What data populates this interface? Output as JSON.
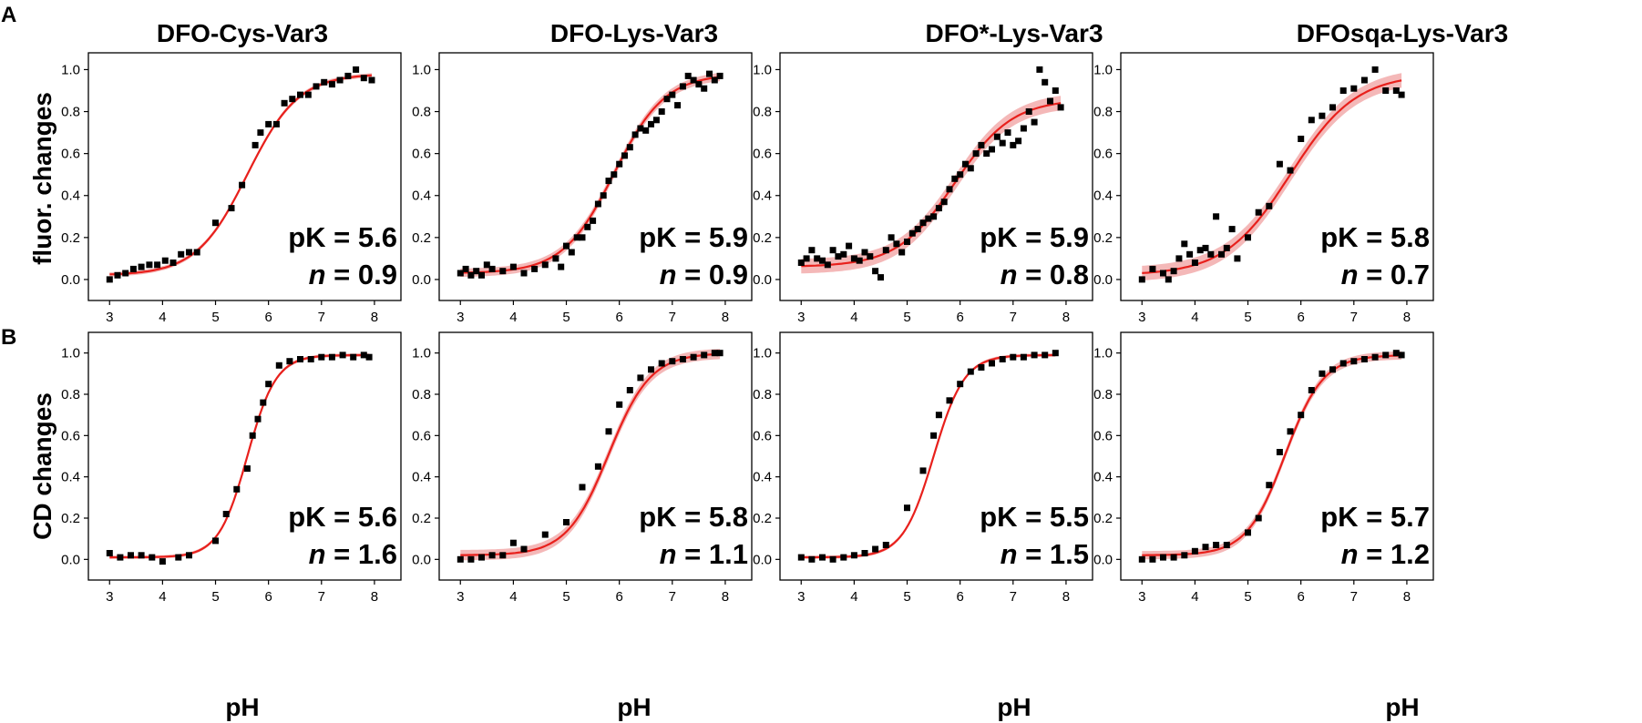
{
  "colors": {
    "fit": "#e8201c",
    "band": "#f0a0a0",
    "points": "#000000"
  },
  "panel_letters": [
    "A",
    "B"
  ],
  "row_ylabels": [
    "fluor. changes",
    "CD changes"
  ],
  "xlabel": "pH",
  "titles": [
    "DFO-Cys-Var3",
    "DFO-Lys-Var3",
    "DFO*-Lys-Var3",
    "DFOsqa-Lys-Var3"
  ],
  "chart_data": [
    {
      "type": "scatter",
      "title": "DFO-Cys-Var3",
      "ylabel": "fluor. changes",
      "xlabel": "",
      "xlim": [
        2.6,
        8.5
      ],
      "ylim": [
        -0.1,
        1.08
      ],
      "xticks": [
        3,
        4,
        5,
        6,
        7,
        8
      ],
      "yticks": [
        0.0,
        0.2,
        0.4,
        0.6,
        0.8,
        1.0
      ],
      "fit": {
        "pK": 5.6,
        "n": 0.9,
        "base": 0.02,
        "top": 0.98,
        "band": 0.01
      },
      "pK_text": "pK = 5.6",
      "n_text": "= 0.9",
      "n_symbol": "n",
      "x": [
        3.0,
        3.15,
        3.3,
        3.45,
        3.6,
        3.75,
        3.9,
        4.05,
        4.2,
        4.35,
        4.5,
        4.65,
        5.0,
        5.3,
        5.5,
        5.75,
        5.85,
        6.0,
        6.15,
        6.3,
        6.45,
        6.6,
        6.75,
        6.9,
        7.05,
        7.2,
        7.35,
        7.5,
        7.65,
        7.8,
        7.95
      ],
      "y": [
        0.0,
        0.02,
        0.03,
        0.05,
        0.06,
        0.07,
        0.07,
        0.09,
        0.08,
        0.12,
        0.13,
        0.13,
        0.27,
        0.34,
        0.45,
        0.64,
        0.7,
        0.74,
        0.74,
        0.84,
        0.86,
        0.88,
        0.88,
        0.92,
        0.94,
        0.93,
        0.95,
        0.97,
        1.0,
        0.96,
        0.95
      ]
    },
    {
      "type": "scatter",
      "title": "DFO-Lys-Var3",
      "ylabel": "",
      "xlabel": "",
      "xlim": [
        2.6,
        8.5
      ],
      "ylim": [
        -0.1,
        1.08
      ],
      "xticks": [
        3,
        4,
        5,
        6,
        7,
        8
      ],
      "yticks": [
        0.0,
        0.2,
        0.4,
        0.6,
        0.8,
        1.0
      ],
      "fit": {
        "pK": 5.9,
        "n": 0.9,
        "base": 0.03,
        "top": 0.98,
        "band": 0.02
      },
      "pK_text": "pK = 5.9",
      "n_text": "= 0.9",
      "n_symbol": "n",
      "x": [
        3.0,
        3.1,
        3.2,
        3.3,
        3.4,
        3.5,
        3.6,
        3.8,
        4.0,
        4.2,
        4.4,
        4.6,
        4.8,
        4.9,
        5.0,
        5.1,
        5.2,
        5.3,
        5.4,
        5.5,
        5.6,
        5.7,
        5.8,
        5.9,
        6.0,
        6.1,
        6.2,
        6.3,
        6.4,
        6.5,
        6.6,
        6.7,
        6.8,
        6.9,
        7.0,
        7.1,
        7.2,
        7.3,
        7.4,
        7.5,
        7.6,
        7.7,
        7.8,
        7.9
      ],
      "y": [
        0.03,
        0.05,
        0.02,
        0.04,
        0.02,
        0.07,
        0.05,
        0.04,
        0.06,
        0.03,
        0.05,
        0.07,
        0.1,
        0.06,
        0.16,
        0.13,
        0.2,
        0.2,
        0.25,
        0.28,
        0.36,
        0.4,
        0.47,
        0.5,
        0.55,
        0.59,
        0.63,
        0.69,
        0.72,
        0.71,
        0.74,
        0.76,
        0.8,
        0.86,
        0.88,
        0.83,
        0.92,
        0.97,
        0.95,
        0.93,
        0.91,
        0.98,
        0.95,
        0.97
      ]
    },
    {
      "type": "scatter",
      "title": "DFO*-Lys-Var3",
      "ylabel": "",
      "xlabel": "",
      "xlim": [
        2.6,
        8.5
      ],
      "ylim": [
        -0.1,
        1.08
      ],
      "xticks": [
        3,
        4,
        5,
        6,
        7,
        8
      ],
      "yticks": [
        0.0,
        0.2,
        0.4,
        0.6,
        0.8,
        1.0
      ],
      "fit": {
        "pK": 5.9,
        "n": 0.8,
        "base": 0.06,
        "top": 0.86,
        "band": 0.035
      },
      "pK_text": "pK = 5.9",
      "n_text": "= 0.8",
      "n_symbol": "n",
      "x": [
        3.0,
        3.1,
        3.2,
        3.3,
        3.4,
        3.5,
        3.6,
        3.7,
        3.8,
        3.9,
        4.0,
        4.1,
        4.2,
        4.3,
        4.4,
        4.5,
        4.6,
        4.7,
        4.8,
        4.9,
        5.0,
        5.1,
        5.2,
        5.3,
        5.4,
        5.5,
        5.6,
        5.7,
        5.8,
        5.9,
        6.0,
        6.1,
        6.2,
        6.3,
        6.4,
        6.5,
        6.6,
        6.7,
        6.8,
        6.9,
        7.0,
        7.1,
        7.2,
        7.3,
        7.4,
        7.5,
        7.6,
        7.7,
        7.8,
        7.9
      ],
      "y": [
        0.08,
        0.1,
        0.14,
        0.1,
        0.09,
        0.07,
        0.14,
        0.11,
        0.12,
        0.16,
        0.1,
        0.09,
        0.13,
        0.11,
        0.04,
        0.01,
        0.14,
        0.2,
        0.17,
        0.13,
        0.18,
        0.22,
        0.24,
        0.27,
        0.29,
        0.3,
        0.34,
        0.37,
        0.43,
        0.48,
        0.5,
        0.55,
        0.53,
        0.6,
        0.64,
        0.6,
        0.62,
        0.68,
        0.65,
        0.7,
        0.64,
        0.66,
        0.72,
        0.8,
        0.75,
        1.0,
        0.94,
        0.85,
        0.9,
        0.82
      ]
    },
    {
      "type": "scatter",
      "title": "DFOsqa-Lys-Var3",
      "ylabel": "",
      "xlabel": "",
      "xlim": [
        2.6,
        8.5
      ],
      "ylim": [
        -0.1,
        1.08
      ],
      "xticks": [
        3,
        4,
        5,
        6,
        7,
        8
      ],
      "yticks": [
        0.0,
        0.2,
        0.4,
        0.6,
        0.8,
        1.0
      ],
      "fit": {
        "pK": 5.8,
        "n": 0.7,
        "base": 0.02,
        "top": 0.98,
        "band": 0.035
      },
      "pK_text": "pK = 5.8",
      "n_text": "= 0.7",
      "n_symbol": "n",
      "x": [
        3.0,
        3.2,
        3.4,
        3.5,
        3.6,
        3.7,
        3.8,
        3.9,
        4.0,
        4.1,
        4.2,
        4.3,
        4.4,
        4.5,
        4.6,
        4.7,
        4.8,
        5.0,
        5.2,
        5.4,
        5.6,
        5.8,
        6.0,
        6.2,
        6.4,
        6.6,
        6.8,
        7.0,
        7.2,
        7.4,
        7.6,
        7.8,
        7.9
      ],
      "y": [
        0.0,
        0.05,
        0.03,
        0.0,
        0.04,
        0.1,
        0.17,
        0.12,
        0.08,
        0.14,
        0.15,
        0.12,
        0.3,
        0.12,
        0.15,
        0.24,
        0.1,
        0.2,
        0.32,
        0.35,
        0.55,
        0.52,
        0.67,
        0.76,
        0.78,
        0.82,
        0.9,
        0.91,
        0.95,
        1.0,
        0.9,
        0.9,
        0.88
      ]
    },
    {
      "type": "scatter",
      "title": "",
      "ylabel": "CD changes",
      "xlabel": "pH",
      "xlim": [
        2.6,
        8.5
      ],
      "ylim": [
        -0.1,
        1.1
      ],
      "xticks": [
        3,
        4,
        5,
        6,
        7,
        8
      ],
      "yticks": [
        0.0,
        0.2,
        0.4,
        0.6,
        0.8,
        1.0
      ],
      "fit": {
        "pK": 5.6,
        "n": 1.6,
        "base": 0.01,
        "top": 0.99,
        "band": 0.008
      },
      "pK_text": "pK = 5.6",
      "n_text": "= 1.6",
      "n_symbol": "n",
      "x": [
        3.0,
        3.2,
        3.4,
        3.6,
        3.8,
        4.0,
        4.3,
        4.5,
        5.0,
        5.2,
        5.4,
        5.6,
        5.7,
        5.8,
        5.9,
        6.0,
        6.2,
        6.4,
        6.6,
        6.8,
        7.0,
        7.2,
        7.4,
        7.6,
        7.8,
        7.9
      ],
      "y": [
        0.03,
        0.01,
        0.02,
        0.02,
        0.01,
        -0.01,
        0.01,
        0.02,
        0.09,
        0.22,
        0.34,
        0.44,
        0.6,
        0.68,
        0.76,
        0.85,
        0.94,
        0.96,
        0.97,
        0.97,
        0.98,
        0.98,
        0.99,
        0.98,
        0.99,
        0.98
      ]
    },
    {
      "type": "scatter",
      "title": "",
      "ylabel": "",
      "xlabel": "pH",
      "xlim": [
        2.6,
        8.5
      ],
      "ylim": [
        -0.1,
        1.1
      ],
      "xticks": [
        3,
        4,
        5,
        6,
        7,
        8
      ],
      "yticks": [
        0.0,
        0.2,
        0.4,
        0.6,
        0.8,
        1.0
      ],
      "fit": {
        "pK": 5.8,
        "n": 1.1,
        "base": 0.02,
        "top": 1.0,
        "band": 0.025
      },
      "pK_text": "pK = 5.8",
      "n_text": "= 1.1",
      "n_symbol": "n",
      "x": [
        3.0,
        3.2,
        3.4,
        3.6,
        3.8,
        4.0,
        4.2,
        4.6,
        5.0,
        5.3,
        5.6,
        5.8,
        6.0,
        6.2,
        6.4,
        6.6,
        6.8,
        7.0,
        7.2,
        7.4,
        7.6,
        7.8,
        7.9
      ],
      "y": [
        0.0,
        0.0,
        0.01,
        0.02,
        0.02,
        0.08,
        0.05,
        0.12,
        0.18,
        0.35,
        0.45,
        0.62,
        0.75,
        0.82,
        0.88,
        0.92,
        0.95,
        0.96,
        0.97,
        0.98,
        0.99,
        1.0,
        1.0
      ]
    },
    {
      "type": "scatter",
      "title": "",
      "ylabel": "",
      "xlabel": "pH",
      "xlim": [
        2.6,
        8.5
      ],
      "ylim": [
        -0.1,
        1.1
      ],
      "xticks": [
        3,
        4,
        5,
        6,
        7,
        8
      ],
      "yticks": [
        0.0,
        0.2,
        0.4,
        0.6,
        0.8,
        1.0
      ],
      "fit": {
        "pK": 5.5,
        "n": 1.5,
        "base": 0.01,
        "top": 0.99,
        "band": 0.008
      },
      "pK_text": "pK = 5.5",
      "n_text": "= 1.5",
      "n_symbol": "n",
      "x": [
        3.0,
        3.2,
        3.4,
        3.6,
        3.8,
        4.0,
        4.2,
        4.4,
        4.6,
        5.0,
        5.3,
        5.5,
        5.6,
        5.8,
        6.0,
        6.2,
        6.4,
        6.6,
        6.8,
        7.0,
        7.2,
        7.4,
        7.6,
        7.8
      ],
      "y": [
        0.01,
        0.0,
        0.01,
        0.0,
        0.01,
        0.02,
        0.03,
        0.05,
        0.07,
        0.25,
        0.43,
        0.6,
        0.7,
        0.77,
        0.85,
        0.91,
        0.93,
        0.95,
        0.97,
        0.98,
        0.98,
        0.99,
        0.99,
        1.0
      ]
    },
    {
      "type": "scatter",
      "title": "",
      "ylabel": "",
      "xlabel": "pH",
      "xlim": [
        2.6,
        8.5
      ],
      "ylim": [
        -0.1,
        1.1
      ],
      "xticks": [
        3,
        4,
        5,
        6,
        7,
        8
      ],
      "yticks": [
        0.0,
        0.2,
        0.4,
        0.6,
        0.8,
        1.0
      ],
      "fit": {
        "pK": 5.7,
        "n": 1.2,
        "base": 0.02,
        "top": 0.99,
        "band": 0.02
      },
      "pK_text": "pK = 5.7",
      "n_text": "= 1.2",
      "n_symbol": "n",
      "x": [
        3.0,
        3.2,
        3.4,
        3.6,
        3.8,
        4.0,
        4.2,
        4.4,
        4.6,
        5.0,
        5.2,
        5.4,
        5.6,
        5.8,
        6.0,
        6.2,
        6.4,
        6.6,
        6.8,
        7.0,
        7.2,
        7.4,
        7.6,
        7.8,
        7.9
      ],
      "y": [
        0.0,
        0.0,
        0.01,
        0.01,
        0.02,
        0.04,
        0.06,
        0.07,
        0.07,
        0.13,
        0.2,
        0.36,
        0.52,
        0.62,
        0.7,
        0.82,
        0.9,
        0.92,
        0.95,
        0.96,
        0.97,
        0.98,
        0.99,
        1.0,
        0.99
      ]
    }
  ]
}
